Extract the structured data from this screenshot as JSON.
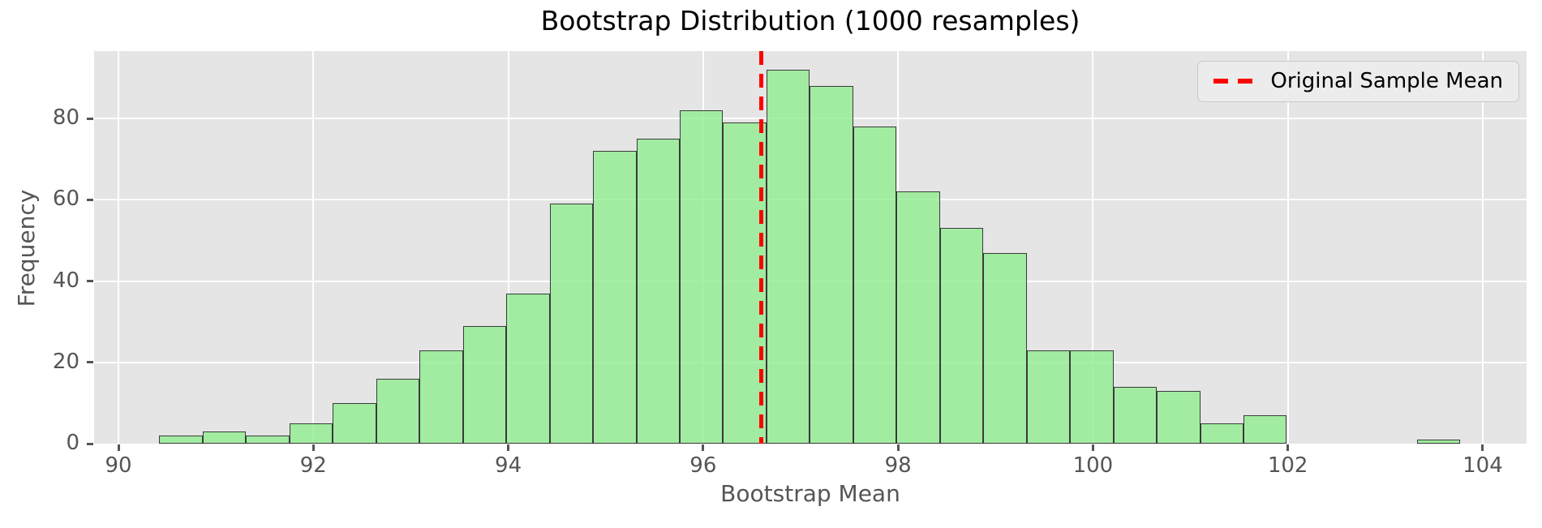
{
  "figure": {
    "title": "Bootstrap Distribution (1000 resamples)",
    "xlabel": "Bootstrap Mean",
    "ylabel": "Frequency",
    "legend": {
      "label": "Original Sample Mean"
    }
  },
  "chart_data": {
    "type": "bar",
    "subtype": "histogram",
    "title": "Bootstrap Distribution (1000 resamples)",
    "xlabel": "Bootstrap Mean",
    "ylabel": "Frequency",
    "n_resamples": 1000,
    "bin_start": 90.42,
    "bin_width": 0.445,
    "counts": [
      2,
      3,
      2,
      5,
      10,
      16,
      23,
      29,
      37,
      59,
      72,
      75,
      82,
      79,
      92,
      88,
      78,
      62,
      53,
      47,
      23,
      23,
      14,
      13,
      5,
      7,
      0,
      0,
      0,
      1
    ],
    "x_ticks": [
      90,
      92,
      94,
      96,
      98,
      100,
      102,
      104
    ],
    "y_ticks": [
      0,
      20,
      40,
      60,
      80
    ],
    "xlim": [
      89.75,
      104.45
    ],
    "ylim": [
      0,
      96.6
    ],
    "grid": true,
    "legend_position": "upper right",
    "vline": {
      "x": 96.6,
      "label": "Original Sample Mean",
      "color": "#ff0000",
      "style": "dashed"
    },
    "colors": {
      "bar_fill": "#a1eca1",
      "bar_edge": "#3a3a3a",
      "plot_background": "#e5e5e5",
      "gridline": "#ffffff",
      "tick_text": "#555555",
      "title_text": "#000000",
      "vline": "#ff0000"
    }
  }
}
